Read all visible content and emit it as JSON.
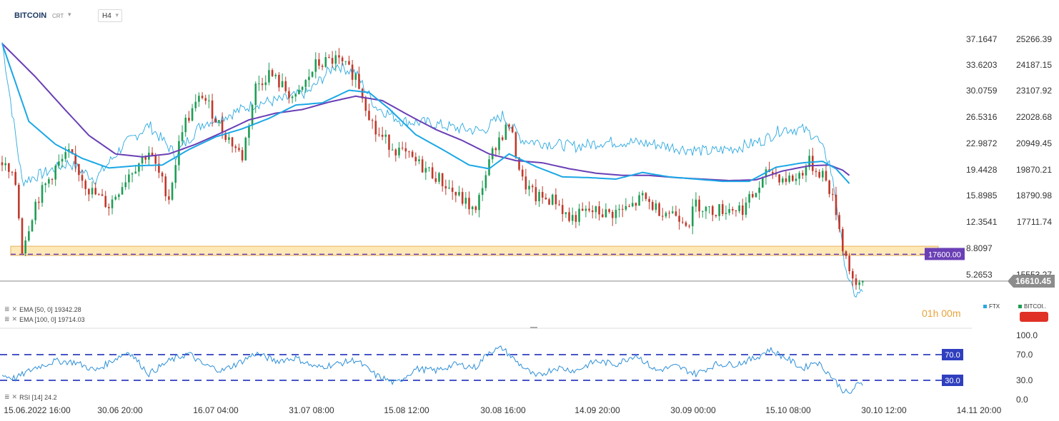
{
  "header": {
    "symbol": "BITCOIN",
    "subtype": "CRT",
    "timeframe": "H4"
  },
  "indicators": {
    "ema50": "EMA [50, 0] 19342.28",
    "ema100": "EMA [100, 0] 19714.03",
    "rsi": "RSI [14] 24.2"
  },
  "labels": {
    "level_tag": "17600.00",
    "price_tag": "16610.45",
    "countdown": "01h 00m",
    "ftx": "FTX",
    "bitcoin_src": "BITCOI.."
  },
  "colors": {
    "bull": "#1f9d55",
    "bear": "#c0392b",
    "ftx_line": "#2aa8e0",
    "ema50": "#1aa7e6",
    "ema100": "#6a3fb5",
    "level_band": "#fde9b8",
    "rsi_line": "#2d8fd8",
    "rsi_guides": "#2f3fbf",
    "price_tag_bg": "#8c8c8c",
    "level_tag_bg": "#6a3fb5"
  },
  "chart_data": {
    "type": "candlestick",
    "title": "BITCOIN",
    "timeframe": "H4",
    "x_ticks": [
      "15.06.2022 16:00",
      "30.06 20:00",
      "16.07 04:00",
      "31.07 08:00",
      "15.08 12:00",
      "30.08 16:00",
      "14.09 20:00",
      "30.09 00:00",
      "15.10 08:00",
      "30.10 12:00",
      "14.11 20:00"
    ],
    "y_left_ticks": [
      "37.1647",
      "33.6203",
      "30.0759",
      "26.5316",
      "22.9872",
      "19.4428",
      "15.8985",
      "12.3541",
      "8.8097",
      "5.2653"
    ],
    "y_right_ticks": [
      "25266.39",
      "24187.15",
      "23107.92",
      "22028.68",
      "20949.45",
      "19870.21",
      "18790.98",
      "17711.74",
      "16610.45",
      "15553.27"
    ],
    "price_range": [
      15000,
      26000
    ],
    "current_price": 16610.45,
    "support_level": 17600.0,
    "support_band": [
      17560,
      17900
    ],
    "bitcoin_path": [
      [
        0,
        21000
      ],
      [
        2,
        20200
      ],
      [
        3,
        17800
      ],
      [
        5,
        19500
      ],
      [
        8,
        20800
      ],
      [
        10,
        21300
      ],
      [
        13,
        20000
      ],
      [
        16,
        19400
      ],
      [
        19,
        20600
      ],
      [
        22,
        21400
      ],
      [
        25,
        19700
      ],
      [
        27,
        22300
      ],
      [
        30,
        23500
      ],
      [
        33,
        22200
      ],
      [
        36,
        21200
      ],
      [
        38,
        23800
      ],
      [
        40,
        24300
      ],
      [
        44,
        23300
      ],
      [
        47,
        24600
      ],
      [
        50,
        24800
      ],
      [
        53,
        24200
      ],
      [
        56,
        22100
      ],
      [
        59,
        21500
      ],
      [
        62,
        21000
      ],
      [
        65,
        20500
      ],
      [
        68,
        19800
      ],
      [
        70,
        19400
      ],
      [
        71,
        19100
      ],
      [
        72,
        20200
      ],
      [
        74,
        21700
      ],
      [
        76,
        22400
      ],
      [
        78,
        20300
      ],
      [
        80,
        19700
      ],
      [
        83,
        19600
      ],
      [
        85,
        18900
      ],
      [
        88,
        19200
      ],
      [
        91,
        19100
      ],
      [
        94,
        19300
      ],
      [
        96,
        19700
      ],
      [
        98,
        19300
      ],
      [
        101,
        19100
      ],
      [
        103,
        18800
      ],
      [
        104,
        19500
      ],
      [
        106,
        19200
      ],
      [
        109,
        19300
      ],
      [
        111,
        19300
      ],
      [
        113,
        19900
      ],
      [
        115,
        20700
      ],
      [
        117,
        20400
      ],
      [
        119,
        20400
      ],
      [
        121,
        21000
      ],
      [
        122,
        20700
      ],
      [
        123,
        20600
      ],
      [
        124,
        20000
      ],
      [
        125,
        19200
      ],
      [
        126,
        17900
      ],
      [
        127,
        17100
      ],
      [
        128,
        16250
      ],
      [
        129,
        16610
      ]
    ],
    "ftx_path": [
      [
        0,
        37.2
      ],
      [
        3,
        18.4
      ],
      [
        6,
        19.4
      ],
      [
        10,
        20.9
      ],
      [
        14,
        18.7
      ],
      [
        18,
        23.1
      ],
      [
        22,
        26.0
      ],
      [
        26,
        22.0
      ],
      [
        30,
        26.2
      ],
      [
        34,
        27.4
      ],
      [
        38,
        28.9
      ],
      [
        42,
        29.4
      ],
      [
        46,
        30.5
      ],
      [
        50,
        34.2
      ],
      [
        53,
        33.0
      ],
      [
        56,
        28.5
      ],
      [
        60,
        26.5
      ],
      [
        64,
        26.3
      ],
      [
        68,
        25.6
      ],
      [
        72,
        25.2
      ],
      [
        75,
        27.3
      ],
      [
        78,
        24.0
      ],
      [
        82,
        23.5
      ],
      [
        86,
        23.1
      ],
      [
        90,
        23.7
      ],
      [
        94,
        23.7
      ],
      [
        98,
        23.4
      ],
      [
        102,
        22.8
      ],
      [
        106,
        22.4
      ],
      [
        110,
        22.9
      ],
      [
        114,
        23.9
      ],
      [
        117,
        25.5
      ],
      [
        120,
        25.4
      ],
      [
        122,
        24.5
      ],
      [
        124,
        20.9
      ],
      [
        125,
        16.0
      ],
      [
        126,
        9.0
      ],
      [
        127,
        4.5
      ],
      [
        128,
        3.0
      ],
      [
        129,
        3.4
      ]
    ],
    "ema50_path": [
      [
        0,
        37.0
      ],
      [
        4,
        26.5
      ],
      [
        8,
        23.4
      ],
      [
        12,
        21.5
      ],
      [
        16,
        20.2
      ],
      [
        20,
        20.5
      ],
      [
        24,
        20.6
      ],
      [
        28,
        22.7
      ],
      [
        32,
        24.4
      ],
      [
        36,
        25.5
      ],
      [
        40,
        26.9
      ],
      [
        44,
        28.7
      ],
      [
        48,
        29.0
      ],
      [
        52,
        30.7
      ],
      [
        55,
        30.4
      ],
      [
        58,
        28.2
      ],
      [
        62,
        24.7
      ],
      [
        66,
        22.7
      ],
      [
        70,
        20.6
      ],
      [
        73,
        20.1
      ],
      [
        76,
        22.1
      ],
      [
        80,
        20.4
      ],
      [
        84,
        19.0
      ],
      [
        88,
        18.9
      ],
      [
        92,
        18.7
      ],
      [
        96,
        19.6
      ],
      [
        100,
        19.0
      ],
      [
        104,
        18.7
      ],
      [
        108,
        18.4
      ],
      [
        112,
        18.4
      ],
      [
        116,
        20.3
      ],
      [
        120,
        20.9
      ],
      [
        123,
        21.1
      ],
      [
        125,
        20.1
      ],
      [
        127,
        18.1
      ]
    ],
    "ema100_path": [
      [
        0,
        37.0
      ],
      [
        5,
        32.5
      ],
      [
        9,
        28.5
      ],
      [
        13,
        24.6
      ],
      [
        17,
        22.1
      ],
      [
        21,
        21.7
      ],
      [
        25,
        22.1
      ],
      [
        29,
        23.4
      ],
      [
        33,
        25.0
      ],
      [
        37,
        26.7
      ],
      [
        41,
        27.6
      ],
      [
        45,
        28.1
      ],
      [
        49,
        29.1
      ],
      [
        53,
        29.9
      ],
      [
        57,
        29.3
      ],
      [
        61,
        27.3
      ],
      [
        65,
        25.4
      ],
      [
        69,
        23.9
      ],
      [
        73,
        22.1
      ],
      [
        77,
        21.2
      ],
      [
        81,
        20.9
      ],
      [
        85,
        20.1
      ],
      [
        89,
        19.5
      ],
      [
        93,
        19.2
      ],
      [
        97,
        19.2
      ],
      [
        101,
        18.9
      ],
      [
        105,
        18.7
      ],
      [
        109,
        18.5
      ],
      [
        113,
        18.6
      ],
      [
        117,
        19.8
      ],
      [
        121,
        20.5
      ],
      [
        124,
        20.6
      ],
      [
        126,
        19.9
      ],
      [
        127,
        19.2
      ]
    ],
    "rsi_ticks": [
      "100.0",
      "70.0",
      "30.0",
      "0.0"
    ],
    "rsi_levels": [
      70.0,
      30.0
    ],
    "rsi_path": [
      [
        0,
        38
      ],
      [
        2,
        33
      ],
      [
        5,
        50
      ],
      [
        8,
        60
      ],
      [
        11,
        58
      ],
      [
        14,
        45
      ],
      [
        17,
        64
      ],
      [
        19,
        75
      ],
      [
        22,
        40
      ],
      [
        25,
        60
      ],
      [
        28,
        72
      ],
      [
        30,
        55
      ],
      [
        33,
        45
      ],
      [
        36,
        60
      ],
      [
        38,
        72
      ],
      [
        41,
        60
      ],
      [
        44,
        65
      ],
      [
        47,
        50
      ],
      [
        50,
        55
      ],
      [
        53,
        62
      ],
      [
        56,
        38
      ],
      [
        59,
        25
      ],
      [
        62,
        48
      ],
      [
        65,
        45
      ],
      [
        68,
        55
      ],
      [
        71,
        50
      ],
      [
        73,
        75
      ],
      [
        75,
        80
      ],
      [
        77,
        60
      ],
      [
        80,
        35
      ],
      [
        83,
        50
      ],
      [
        86,
        45
      ],
      [
        89,
        60
      ],
      [
        92,
        55
      ],
      [
        95,
        70
      ],
      [
        98,
        45
      ],
      [
        101,
        52
      ],
      [
        104,
        40
      ],
      [
        107,
        55
      ],
      [
        110,
        55
      ],
      [
        113,
        65
      ],
      [
        115,
        78
      ],
      [
        118,
        62
      ],
      [
        120,
        48
      ],
      [
        122,
        60
      ],
      [
        124,
        40
      ],
      [
        126,
        15
      ],
      [
        127,
        8
      ],
      [
        128,
        22
      ],
      [
        129,
        24.2
      ]
    ]
  }
}
